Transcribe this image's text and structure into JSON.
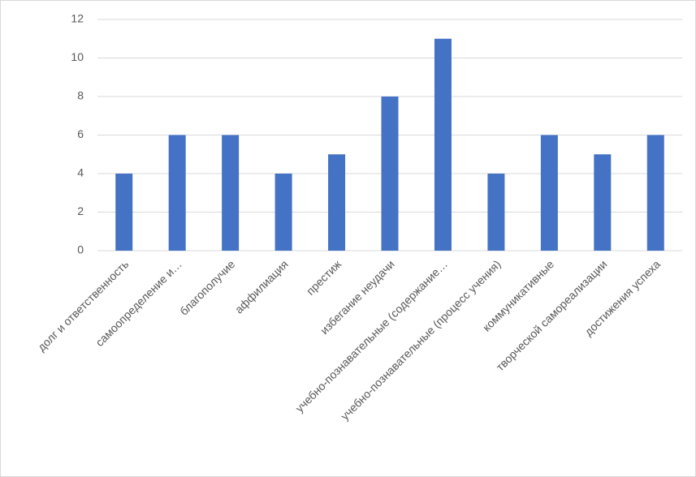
{
  "chart_data": {
    "type": "bar",
    "categories": [
      "долг и ответственность",
      "самоопределение и…",
      "благополучие",
      "аффилиация",
      "престиж",
      "избегание неудачи",
      "учебно-познавательные (содержание…",
      "учебно-познавательные (процесс учения)",
      "коммуникативные",
      "творческой самореализации",
      "достижения успеха"
    ],
    "values": [
      4,
      6,
      6,
      4,
      5,
      8,
      11,
      4,
      6,
      5,
      6
    ],
    "color": "#4472c4",
    "ylim": [
      0,
      12
    ],
    "yticks": [
      0,
      2,
      4,
      6,
      8,
      10,
      12
    ],
    "grid": true
  }
}
